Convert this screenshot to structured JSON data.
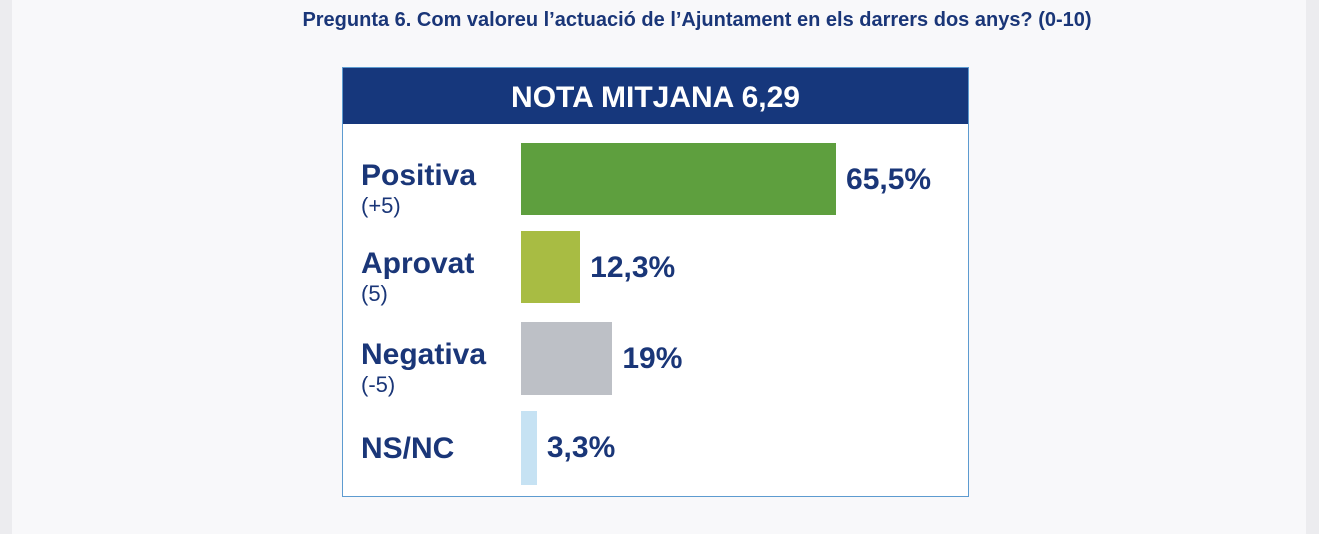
{
  "chart_data": {
    "type": "bar",
    "orientation": "horizontal",
    "title": "Pregunta 6. Com valoreu l’actuació de l’Ajuntament en els darrers dos anys? (0-10)",
    "header": "NOTA MITJANA 6,29",
    "categories": [
      {
        "label": "Positiva",
        "sub": "(+5)",
        "value": 65.5,
        "value_label": "65,5%",
        "color": "#5e9f3e"
      },
      {
        "label": "Aprovat",
        "sub": "(5)",
        "value": 12.3,
        "value_label": "12,3%",
        "color": "#a8bc43"
      },
      {
        "label": "Negativa",
        "sub": "(-5)",
        "value": 19,
        "value_label": "19%",
        "color": "#bdc0c6"
      },
      {
        "label": "NS/NC",
        "sub": null,
        "value": 3.3,
        "value_label": "3,3%",
        "color": "#c6e2f3"
      }
    ],
    "xlim": [
      0,
      100
    ],
    "grid": false
  }
}
